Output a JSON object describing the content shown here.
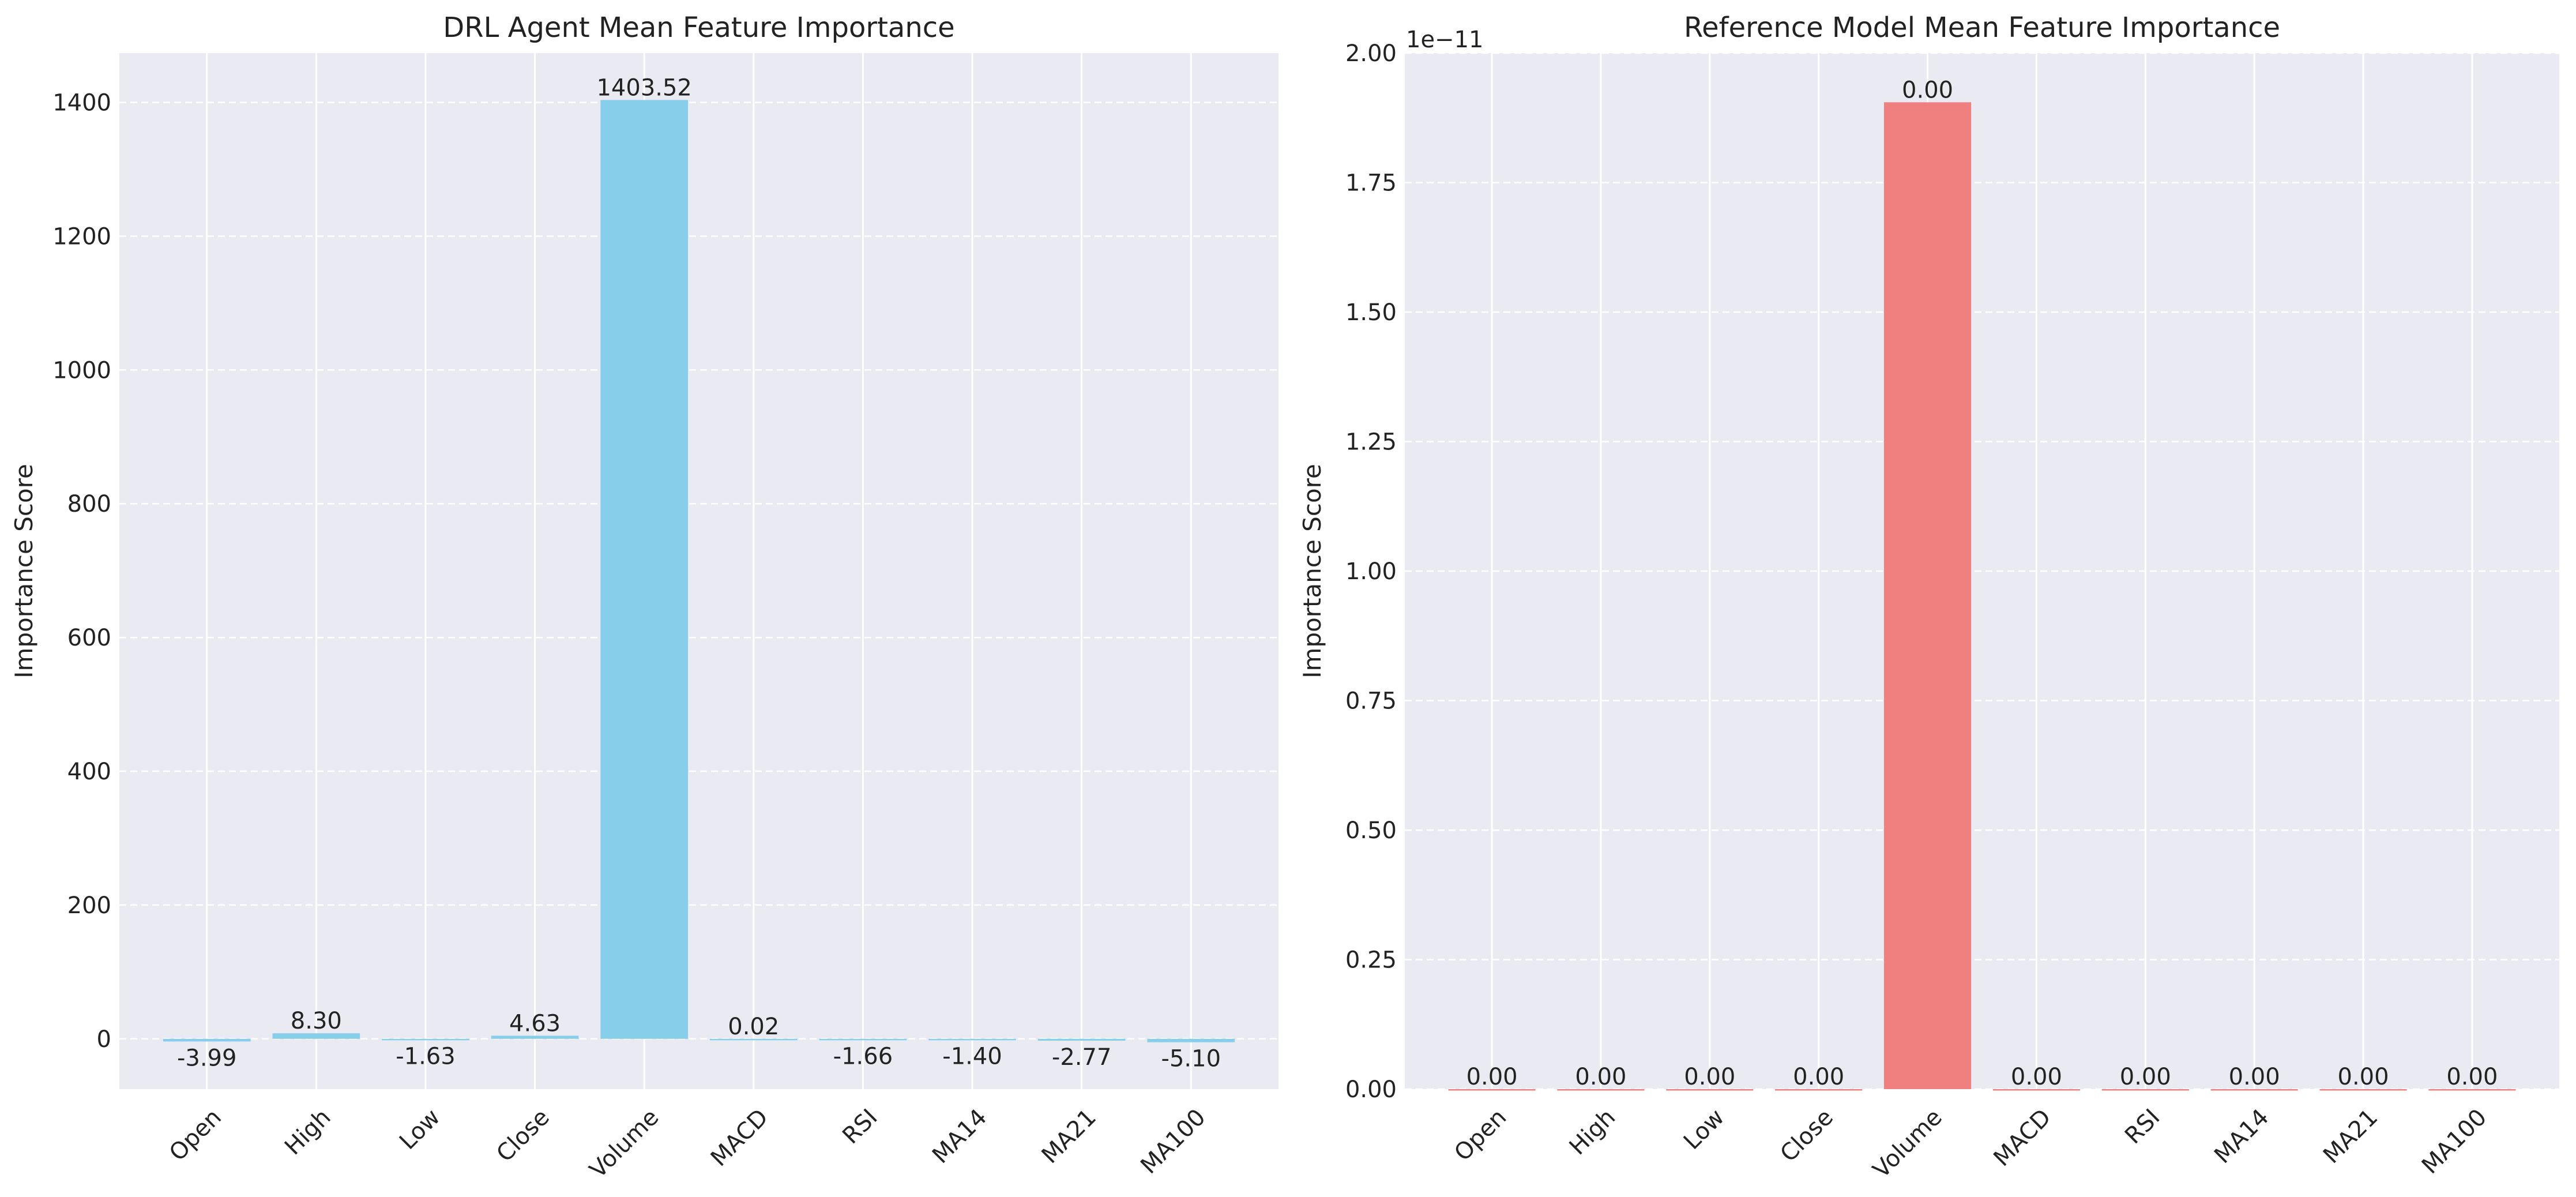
{
  "chart_data": [
    {
      "type": "bar",
      "title": "DRL Agent Mean Feature Importance",
      "xlabel": "",
      "ylabel": "Importance Score",
      "categories": [
        "Open",
        "High",
        "Low",
        "Close",
        "Volume",
        "MACD",
        "RSI",
        "MA14",
        "MA21",
        "MA100"
      ],
      "values": [
        -3.99,
        8.3,
        -1.63,
        4.63,
        1403.52,
        0.02,
        -1.66,
        -1.4,
        -2.77,
        -5.1
      ],
      "value_labels": [
        "-3.99",
        "8.30",
        "-1.63",
        "4.63",
        "1403.52",
        "0.02",
        "-1.66",
        "-1.40",
        "-2.77",
        "-5.10"
      ],
      "yticks": [
        0,
        200,
        400,
        600,
        800,
        1000,
        1200,
        1400
      ],
      "ytick_labels": [
        "0",
        "200",
        "400",
        "600",
        "800",
        "1000",
        "1200",
        "1400"
      ],
      "ylim": [
        -75.2,
        1473.7
      ],
      "offset_text": "",
      "bar_color": "#87CEEB",
      "grid": true,
      "background": "#EAEAF2"
    },
    {
      "type": "bar",
      "title": "Reference Model Mean Feature Importance",
      "xlabel": "",
      "ylabel": "Importance Score",
      "categories": [
        "Open",
        "High",
        "Low",
        "Close",
        "Volume",
        "MACD",
        "RSI",
        "MA14",
        "MA21",
        "MA100"
      ],
      "values": [
        0,
        0,
        0,
        0,
        1.905e-11,
        0,
        0,
        0,
        0,
        0
      ],
      "value_labels": [
        "0.00",
        "0.00",
        "0.00",
        "0.00",
        "0.00",
        "0.00",
        "0.00",
        "0.00",
        "0.00",
        "0.00"
      ],
      "yticks": [
        0,
        2.5e-12,
        5e-12,
        7.5e-12,
        1e-11,
        1.25e-11,
        1.5e-11,
        1.75e-11,
        2e-11
      ],
      "ytick_labels": [
        "0.00",
        "0.25",
        "0.50",
        "0.75",
        "1.00",
        "1.25",
        "1.50",
        "1.75",
        "2.00"
      ],
      "ylim": [
        0,
        2e-11
      ],
      "offset_text": "1e−11",
      "bar_color": "#F08080",
      "grid": true,
      "background": "#EAEAF2"
    }
  ]
}
